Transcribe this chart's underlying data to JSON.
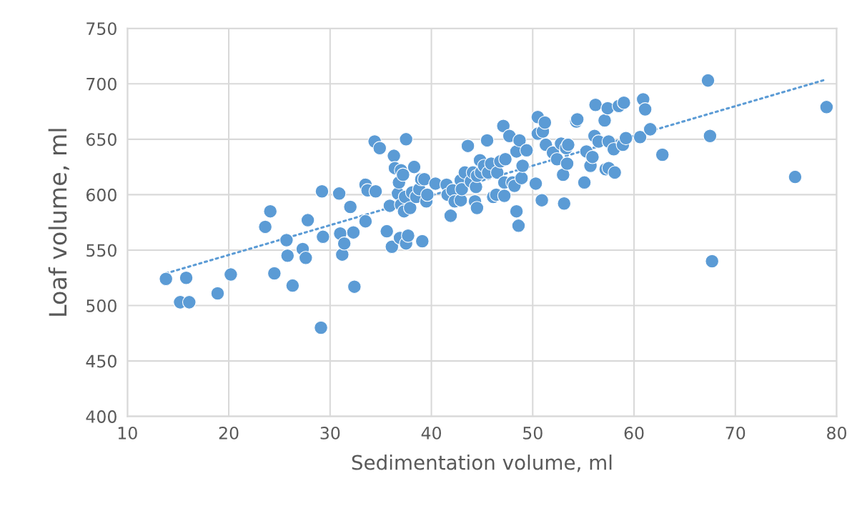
{
  "chart_data": {
    "type": "scatter",
    "xlabel": "Sedimentation volume, ml",
    "ylabel": "Loaf volume, ml",
    "xlim": [
      10,
      80
    ],
    "xticks": [
      10,
      20,
      30,
      40,
      50,
      60,
      70,
      80
    ],
    "ylim": [
      400,
      750
    ],
    "yticks": [
      400,
      450,
      500,
      550,
      600,
      650,
      700,
      750
    ],
    "grid": true,
    "legend": false,
    "series": [
      {
        "color": "#5b9bd5",
        "marker": "circle",
        "x": [
          13.8,
          15.2,
          15.8,
          16.1,
          18.9,
          20.2,
          23.6,
          24.1,
          24.5,
          25.7,
          25.8,
          26.3,
          27.3,
          27.6,
          27.8,
          29.1,
          29.2,
          29.3,
          30.9,
          31.0,
          31.2,
          31.4,
          32.0,
          32.3,
          32.4,
          33.5,
          33.5,
          33.7,
          34.4,
          34.5,
          34.9,
          35.6,
          35.9,
          36.1,
          36.3,
          36.4,
          36.7,
          36.8,
          36.9,
          37.0,
          37.0,
          37.2,
          37.3,
          37.4,
          37.5,
          37.5,
          37.7,
          37.9,
          38.1,
          38.3,
          38.5,
          38.8,
          39.0,
          39.1,
          39.3,
          39.5,
          39.6,
          40.4,
          41.5,
          41.6,
          41.9,
          42.1,
          42.3,
          42.9,
          42.9,
          43.0,
          43.3,
          43.6,
          43.9,
          44.1,
          44.3,
          44.4,
          44.5,
          44.5,
          44.8,
          44.9,
          45.2,
          45.5,
          45.6,
          45.9,
          46.1,
          46.4,
          46.5,
          46.8,
          47.1,
          47.3,
          47.2,
          47.2,
          47.7,
          48.0,
          48.2,
          48.4,
          48.4,
          48.6,
          48.7,
          48.9,
          49.0,
          49.4,
          50.3,
          50.5,
          50.5,
          50.9,
          51.0,
          51.2,
          51.3,
          52.0,
          52.4,
          52.8,
          53.0,
          53.1,
          53.3,
          53.4,
          53.5,
          54.3,
          54.4,
          55.1,
          55.3,
          55.7,
          55.9,
          56.1,
          56.2,
          56.5,
          57.1,
          57.2,
          57.4,
          57.5,
          57.5,
          58.0,
          58.1,
          58.5,
          58.9,
          59.0,
          59.2,
          60.6,
          60.9,
          61.1,
          61.6,
          62.8,
          67.3,
          67.5,
          67.7,
          75.9,
          79.0
        ],
        "values": [
          524,
          503,
          525,
          503,
          511,
          528,
          571,
          585,
          529,
          559,
          545,
          518,
          551,
          543,
          577,
          480,
          603,
          562,
          601,
          565,
          546,
          556,
          589,
          566,
          517,
          576,
          609,
          604,
          648,
          603,
          642,
          567,
          590,
          553,
          635,
          624,
          601,
          611,
          561,
          622,
          591,
          618,
          585,
          598,
          650,
          556,
          563,
          588,
          602,
          625,
          598,
          605,
          614,
          558,
          614,
          594,
          600,
          610,
          609,
          600,
          581,
          604,
          594,
          613,
          595,
          605,
          620,
          644,
          612,
          620,
          594,
          607,
          588,
          617,
          631,
          620,
          626,
          649,
          620,
          628,
          598,
          600,
          620,
          630,
          662,
          632,
          611,
          599,
          653,
          611,
          608,
          585,
          639,
          572,
          649,
          615,
          626,
          640,
          610,
          670,
          655,
          595,
          657,
          665,
          645,
          638,
          632,
          646,
          618,
          592,
          642,
          628,
          645,
          666,
          668,
          611,
          639,
          626,
          634,
          653,
          681,
          648,
          667,
          623,
          678,
          624,
          648,
          641,
          620,
          680,
          645,
          683,
          651,
          652,
          686,
          677,
          659,
          636,
          703,
          653,
          540,
          616,
          679
        ]
      },
      {
        "type": "line",
        "color": "#5b9bd5",
        "line_style": "dotted",
        "marker": "none",
        "x": [
          13.8,
          79.0
        ],
        "values": [
          529,
          704
        ]
      }
    ]
  }
}
